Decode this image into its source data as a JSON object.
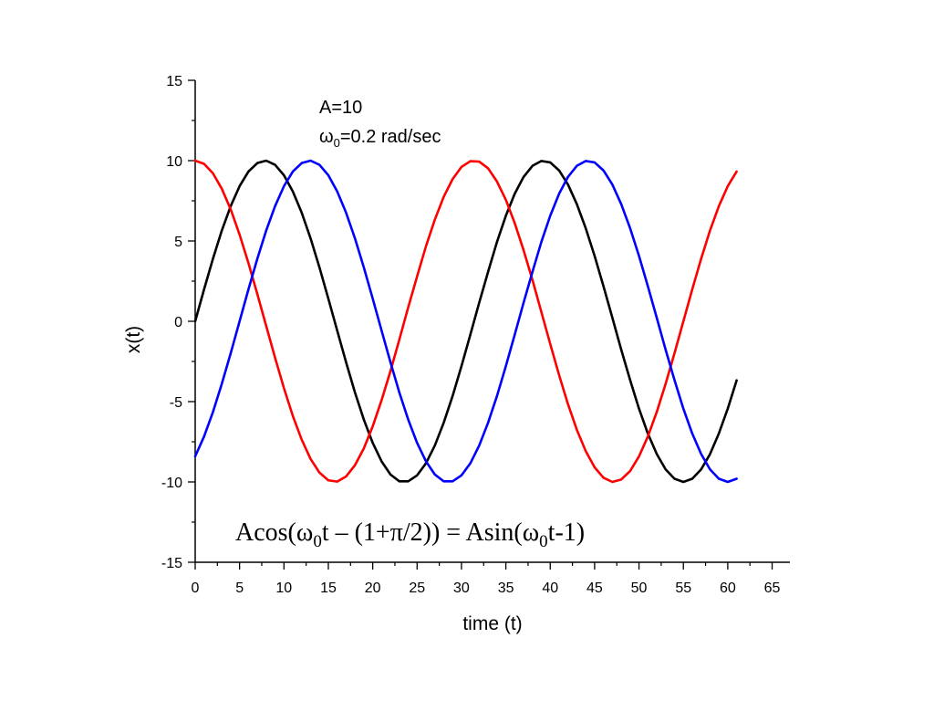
{
  "chart_data": {
    "type": "line",
    "xlabel": "time (t)",
    "ylabel": "x(t)",
    "xlim": [
      0,
      67
    ],
    "ylim": [
      -15,
      15
    ],
    "xticks": [
      0,
      5,
      10,
      15,
      20,
      25,
      30,
      35,
      40,
      45,
      50,
      55,
      60,
      65
    ],
    "yticks": [
      -15,
      -10,
      -5,
      0,
      5,
      10,
      15
    ],
    "grid": false,
    "annotations": {
      "amplitude": "A=10",
      "omega_symbol": "ω",
      "omega_subscript": "0",
      "omega_rest": "=0.2 rad/sec",
      "formula_a": "Acos(ω",
      "formula_sub1": "0",
      "formula_b": "t – (1+π/2)) = Asin(ω",
      "formula_sub2": "0",
      "formula_c": "t-1)"
    },
    "x": [
      0,
      1,
      2,
      3,
      4,
      5,
      6,
      7,
      8,
      9,
      10,
      11,
      12,
      13,
      14,
      15,
      16,
      17,
      18,
      19,
      20,
      21,
      22,
      23,
      24,
      25,
      26,
      27,
      28,
      29,
      30,
      31,
      32,
      33,
      34,
      35,
      36,
      37,
      38,
      39,
      40,
      41,
      42,
      43,
      44,
      45,
      46,
      47,
      48,
      49,
      50,
      51,
      52,
      53,
      54,
      55,
      56,
      57,
      58,
      59,
      60,
      61
    ],
    "series": [
      {
        "color": "#000000",
        "values": [
          0.0,
          1.99,
          3.89,
          5.65,
          7.17,
          8.41,
          9.32,
          9.85,
          10.0,
          9.74,
          9.09,
          8.08,
          6.76,
          5.16,
          3.35,
          1.41,
          -0.58,
          -2.55,
          -4.43,
          -6.12,
          -7.57,
          -8.72,
          -9.54,
          -9.96,
          -9.96,
          -9.59,
          -8.84,
          -7.73,
          -6.31,
          -4.65,
          -2.79,
          -0.83,
          1.16,
          3.08,
          4.94,
          6.57,
          7.94,
          8.99,
          9.68,
          9.98,
          9.89,
          9.39,
          8.51,
          7.29,
          5.79,
          4.07,
          2.18,
          0.22,
          -1.77,
          -3.66,
          -5.44,
          -6.99,
          -8.26,
          -9.22,
          -9.8,
          -10.0,
          -9.8,
          -9.22,
          -8.27,
          -6.98,
          -5.44,
          -3.68
        ]
      },
      {
        "color": "#ff0000",
        "values": [
          10.0,
          9.8,
          9.21,
          8.25,
          6.97,
          5.4,
          3.62,
          1.7,
          -0.29,
          -2.27,
          -4.16,
          -5.89,
          -7.37,
          -8.57,
          -9.42,
          -9.9,
          -9.98,
          -9.66,
          -8.96,
          -7.91,
          -6.54,
          -4.91,
          -3.1,
          -1.14,
          0.87,
          2.79,
          4.67,
          6.33,
          7.75,
          8.85,
          9.61,
          9.97,
          9.94,
          9.52,
          8.7,
          7.56,
          6.11,
          4.42,
          2.57,
          0.58,
          -1.41,
          -3.35,
          -5.16,
          -6.76,
          -8.08,
          -9.09,
          -9.74,
          -10.0,
          -9.85,
          -9.32,
          -8.41,
          -7.17,
          -5.65,
          -3.89,
          -1.99,
          0.0,
          1.99,
          3.89,
          5.65,
          7.17,
          8.41,
          9.32
        ]
      },
      {
        "color": "#0000ff",
        "values": [
          -8.41,
          -7.17,
          -5.65,
          -3.89,
          -1.99,
          0.0,
          1.99,
          3.89,
          5.65,
          7.17,
          8.41,
          9.32,
          9.85,
          10.0,
          9.74,
          9.09,
          8.08,
          6.76,
          5.16,
          3.35,
          1.41,
          -0.58,
          -2.55,
          -4.43,
          -6.12,
          -7.57,
          -8.72,
          -9.54,
          -9.96,
          -9.96,
          -9.59,
          -8.84,
          -7.73,
          -6.31,
          -4.65,
          -2.79,
          -0.83,
          1.16,
          3.08,
          4.94,
          6.57,
          7.94,
          8.99,
          9.68,
          9.98,
          9.89,
          9.39,
          8.51,
          7.29,
          5.79,
          4.07,
          2.18,
          0.22,
          -1.77,
          -3.66,
          -5.44,
          -6.99,
          -8.26,
          -9.22,
          -9.8,
          -10.0,
          -9.8
        ]
      }
    ]
  }
}
